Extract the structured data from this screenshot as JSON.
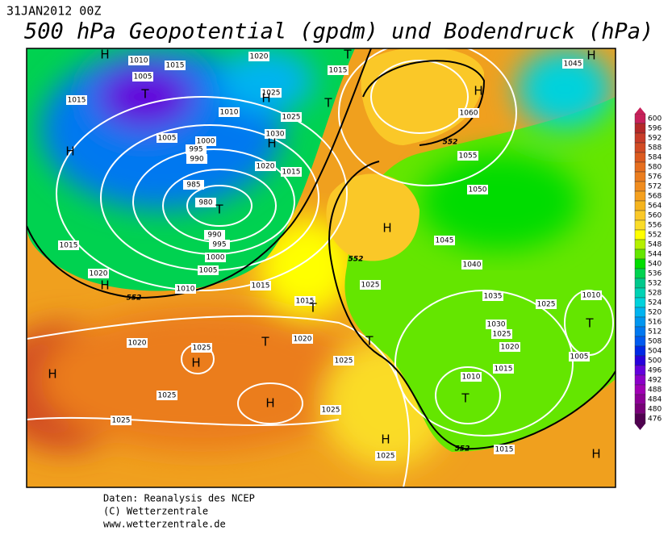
{
  "header": {
    "date": "31JAN2012 00Z",
    "title": "500 hPa Geopotential (gpdm) und Bodendruck (hPa)"
  },
  "footer": [
    "Daten: Reanalysis des NCEP",
    "(C) Wetterzentrale",
    "www.wetterzentrale.de"
  ],
  "colorbar": {
    "labels": [
      "600",
      "596",
      "592",
      "588",
      "584",
      "580",
      "576",
      "572",
      "568",
      "564",
      "560",
      "556",
      "552",
      "548",
      "544",
      "540",
      "536",
      "532",
      "528",
      "524",
      "520",
      "516",
      "512",
      "508",
      "504",
      "500",
      "496",
      "492",
      "488",
      "484",
      "480",
      "476"
    ]
  },
  "map": {
    "labels": [
      "H",
      "1010",
      "1015",
      "1005",
      "T",
      "1015",
      "H",
      "1005",
      "1000",
      "995",
      "990",
      "985",
      "980",
      "T",
      "990",
      "995",
      "1000",
      "1005",
      "1015",
      "1020",
      "H",
      "1010",
      "1015",
      "1020",
      "1025",
      "H",
      "1010",
      "1025",
      "1030",
      "H",
      "1020",
      "1015",
      "T",
      "1015",
      "T",
      "1060",
      "H",
      "1055",
      "1050",
      "H",
      "1045",
      "1040",
      "1025",
      "1035",
      "1025",
      "1010",
      "T",
      "1005",
      "1030",
      "1025",
      "1020",
      "1015",
      "1010",
      "T",
      "1015",
      "H",
      "1045",
      "H",
      "1015",
      "T",
      "T",
      "1020",
      "1025",
      "H",
      "1020",
      "H",
      "1025",
      "1025",
      "1025",
      "T",
      "H",
      "1025",
      "H",
      "1025"
    ],
    "height_labels": [
      "552",
      "552",
      "552",
      "552"
    ]
  }
}
